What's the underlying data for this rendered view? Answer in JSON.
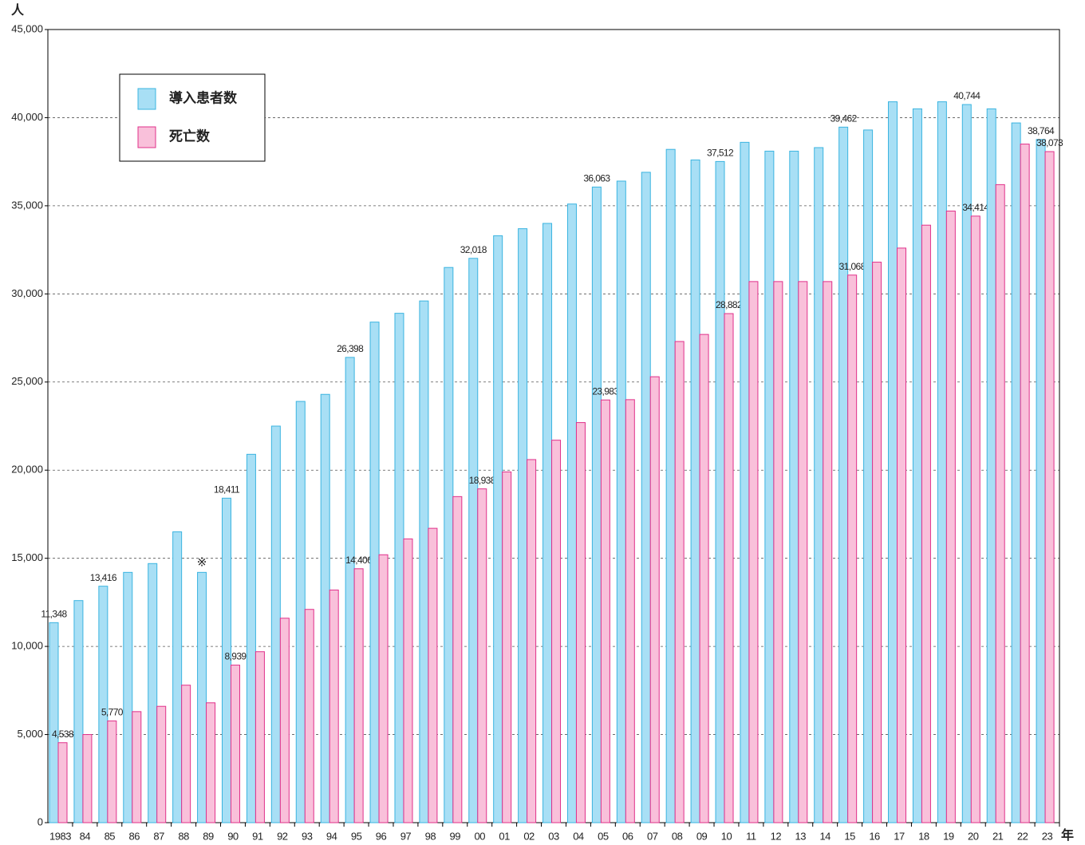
{
  "chart_data": {
    "type": "bar",
    "y_label": "人",
    "x_label": "年",
    "categories": [
      "1983",
      "84",
      "85",
      "86",
      "87",
      "88",
      "89",
      "90",
      "91",
      "92",
      "93",
      "94",
      "95",
      "96",
      "97",
      "98",
      "99",
      "00",
      "01",
      "02",
      "03",
      "04",
      "05",
      "06",
      "07",
      "08",
      "09",
      "10",
      "11",
      "12",
      "13",
      "14",
      "15",
      "16",
      "17",
      "18",
      "19",
      "20",
      "21",
      "22",
      "23"
    ],
    "series": [
      {
        "name": "導入患者数",
        "color": "#a8dff5",
        "stroke": "#3bb4e0",
        "values": [
          11348,
          12600,
          13416,
          14200,
          14700,
          16500,
          14200,
          18411,
          20900,
          22500,
          23900,
          24300,
          26398,
          28400,
          28900,
          29600,
          31500,
          32018,
          33300,
          33700,
          34000,
          35100,
          36063,
          36400,
          36900,
          38200,
          37600,
          37512,
          38600,
          38100,
          38100,
          38300,
          39462,
          39300,
          40900,
          40500,
          40900,
          40744,
          40500,
          39700,
          38764
        ],
        "value_labels": [
          "11,348",
          null,
          "13,416",
          null,
          null,
          null,
          null,
          "18,411",
          null,
          null,
          null,
          null,
          "26,398",
          null,
          null,
          null,
          null,
          "32,018",
          null,
          null,
          null,
          null,
          "36,063",
          null,
          null,
          null,
          null,
          "37,512",
          null,
          null,
          null,
          null,
          "39,462",
          null,
          null,
          null,
          null,
          "40,744",
          null,
          null,
          "38,764"
        ]
      },
      {
        "name": "死亡数",
        "color": "#f9c0da",
        "stroke": "#e0308a",
        "values": [
          4538,
          5000,
          5770,
          6300,
          6600,
          7800,
          6800,
          8939,
          9700,
          11600,
          12100,
          13200,
          14406,
          15200,
          16100,
          16700,
          18500,
          18938,
          19900,
          20600,
          21700,
          22700,
          23983,
          24000,
          25300,
          27300,
          27700,
          28882,
          30700,
          30700,
          30700,
          30700,
          31068,
          31800,
          32600,
          33900,
          34700,
          34414,
          36200,
          38500,
          38073
        ],
        "value_labels": [
          "4,538",
          null,
          "5,770",
          null,
          null,
          null,
          null,
          "8,939",
          null,
          null,
          null,
          null,
          "14,406",
          null,
          null,
          null,
          null,
          "18,938",
          null,
          null,
          null,
          null,
          "23,983",
          null,
          null,
          null,
          null,
          "28,882",
          null,
          null,
          null,
          null,
          "31,068",
          null,
          null,
          null,
          null,
          "34,414",
          null,
          null,
          "38,073"
        ]
      }
    ],
    "annotations": [
      {
        "text": "※",
        "category": "89",
        "series": 0
      }
    ],
    "ylim": [
      0,
      45000
    ],
    "yticks": [
      0,
      {
        "value": 5000,
        "label": "5,000"
      },
      {
        "value": 10000,
        "label": "10,000"
      },
      {
        "value": 15000,
        "label": "15,000"
      },
      {
        "value": 20000,
        "label": "20,000"
      },
      {
        "value": 25000,
        "label": "25,000"
      },
      {
        "value": 30000,
        "label": "30,000"
      },
      {
        "value": 35000,
        "label": "35,000"
      },
      {
        "value": 40000,
        "label": "40,000"
      },
      {
        "value": 45000,
        "label": "45,000"
      }
    ],
    "grid": true,
    "legend": "upper left"
  }
}
